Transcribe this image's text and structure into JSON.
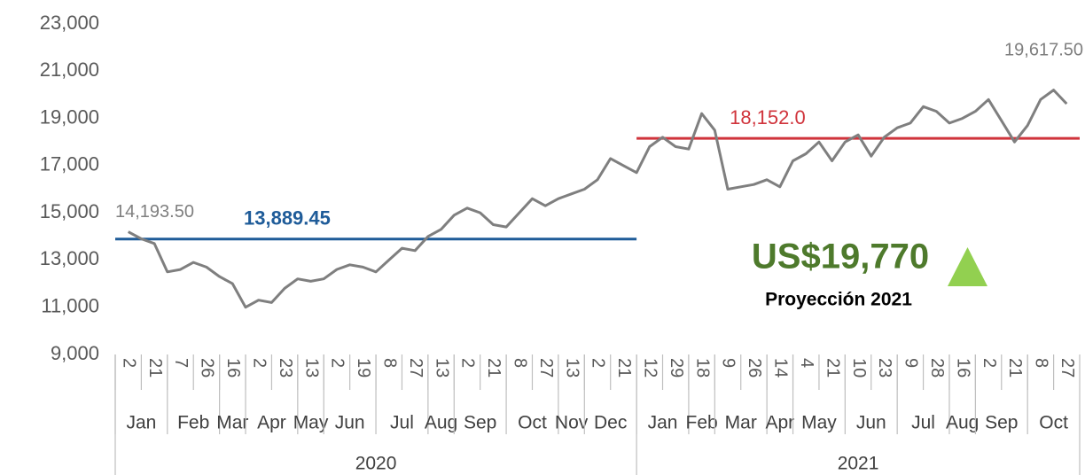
{
  "chart_data": {
    "type": "line",
    "color": "#7f7f7f",
    "ylim": [
      9000,
      23000
    ],
    "yticks": [
      {
        "value": 9000,
        "label": "9,000"
      },
      {
        "value": 11000,
        "label": "11,000"
      },
      {
        "value": 13000,
        "label": "13,000"
      },
      {
        "value": 15000,
        "label": "15,000"
      },
      {
        "value": 17000,
        "label": "17,000"
      },
      {
        "value": 19000,
        "label": "19,000"
      },
      {
        "value": 21000,
        "label": "21,000"
      },
      {
        "value": 23000,
        "label": "23,000"
      }
    ],
    "x": {
      "years": [
        {
          "label": "2020",
          "average": {
            "value": 13889.45,
            "label": "13,889.45",
            "color": "#1f5c99"
          },
          "months": [
            {
              "label": "Jan",
              "days": [
                "2",
                null,
                "21",
                null
              ]
            },
            {
              "label": "Feb",
              "days": [
                "7",
                null,
                "26",
                null
              ]
            },
            {
              "label": "Mar",
              "days": [
                "16",
                null
              ]
            },
            {
              "label": "Apr",
              "days": [
                "2",
                null,
                "23",
                null
              ]
            },
            {
              "label": "May",
              "days": [
                "13",
                null
              ]
            },
            {
              "label": "Jun",
              "days": [
                "2",
                null,
                "19",
                null
              ]
            },
            {
              "label": "Jul",
              "days": [
                "8",
                null,
                "27",
                null
              ]
            },
            {
              "label": "Aug",
              "days": [
                "13",
                null
              ]
            },
            {
              "label": "Sep",
              "days": [
                "2",
                null,
                "21",
                null
              ]
            },
            {
              "label": "Oct",
              "days": [
                "8",
                null,
                "27",
                null
              ]
            },
            {
              "label": "Nov",
              "days": [
                "13",
                null
              ]
            },
            {
              "label": "Dec",
              "days": [
                "2",
                null,
                "21",
                null
              ]
            }
          ]
        },
        {
          "label": "2021",
          "average": {
            "value": 18152.0,
            "label": "18,152.0",
            "color": "#d0343c"
          },
          "months": [
            {
              "label": "Jan",
              "days": [
                "12",
                null,
                "29",
                null
              ]
            },
            {
              "label": "Feb",
              "days": [
                "18",
                null
              ]
            },
            {
              "label": "Mar",
              "days": [
                "9",
                null,
                "26",
                null
              ]
            },
            {
              "label": "Apr",
              "days": [
                "14",
                null
              ]
            },
            {
              "label": "May",
              "days": [
                "4",
                null,
                "21",
                null
              ]
            },
            {
              "label": "Jun",
              "days": [
                "10",
                null,
                "23",
                null
              ]
            },
            {
              "label": "Jul",
              "days": [
                "9",
                null,
                "28",
                null
              ]
            },
            {
              "label": "Aug",
              "days": [
                "16",
                null
              ]
            },
            {
              "label": "Sep",
              "days": [
                "2",
                null,
                "21",
                null
              ]
            },
            {
              "label": "Oct",
              "days": [
                "8",
                null,
                "27"
              ]
            }
          ]
        }
      ]
    },
    "values": [
      14193.5,
      13900,
      13700,
      12500,
      12600,
      12900,
      12700,
      12300,
      12000,
      11000,
      11300,
      11200,
      11800,
      12200,
      12100,
      12200,
      12600,
      12800,
      12700,
      12500,
      13000,
      13500,
      13400,
      14000,
      14300,
      14900,
      15200,
      15000,
      14500,
      14400,
      15000,
      15600,
      15300,
      15600,
      15800,
      16000,
      16400,
      17300,
      17000,
      16700,
      17800,
      18200,
      17800,
      17700,
      19200,
      18500,
      16000,
      16100,
      16200,
      16400,
      16100,
      17200,
      17500,
      18000,
      17200,
      18000,
      18300,
      17400,
      18200,
      18600,
      18800,
      19500,
      19300,
      18800,
      19000,
      19300,
      19800,
      18900,
      18000,
      18700,
      19800,
      20200,
      19617.5
    ],
    "value_labels": {
      "0": "14,193.50",
      "72": "19,617.50"
    },
    "annotation": {
      "value": "US$19,770",
      "label": "Proyección 2021",
      "color": "#4e7a2c",
      "arrow_color": "#92d050"
    }
  }
}
